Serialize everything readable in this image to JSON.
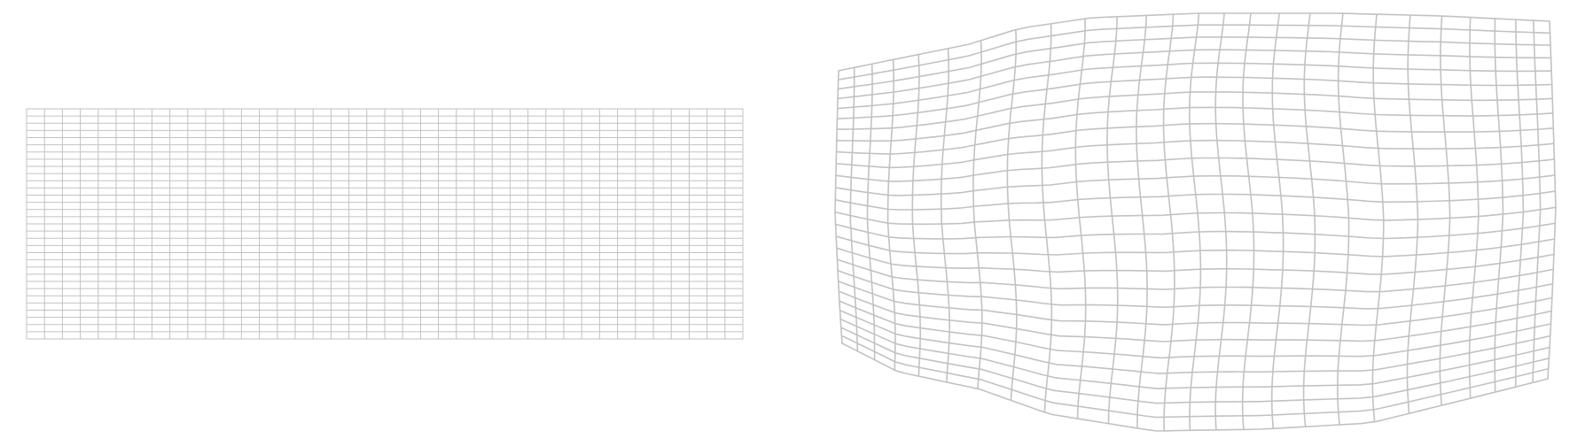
{
  "figure": {
    "background": "#ffffff",
    "line_color": "#c2c2c2",
    "panels": [
      {
        "name": "regular-grid",
        "kind": "undeformed mesh",
        "columns": 40,
        "rows": 32
      },
      {
        "name": "warped-grid",
        "kind": "deformed mesh",
        "columns": 26,
        "rows": 26
      }
    ]
  }
}
